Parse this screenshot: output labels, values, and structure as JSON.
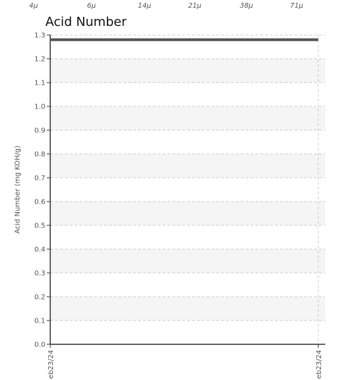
{
  "top_strip": {
    "labels": [
      "4μ",
      "6μ",
      "14μ",
      "21μ",
      "38μ",
      "71μ"
    ]
  },
  "chart_data": {
    "type": "line",
    "title": "Acid Number",
    "xlabel": "",
    "ylabel": "Acid Number (mg KOH/g)",
    "x": [
      "eb23/24",
      "eb23/24"
    ],
    "series": [
      {
        "values": [
          1.28,
          1.28
        ]
      }
    ],
    "ylim": [
      0,
      1.3
    ],
    "yticks": [
      "0.0",
      "0.1",
      "0.2",
      "0.3",
      "0.4",
      "0.5",
      "0.6",
      "0.7",
      "0.8",
      "0.9",
      "1.0",
      "1.1",
      "1.2",
      "1.3"
    ],
    "grid": true,
    "colors": {
      "line": "#555555",
      "band": "#f5f5f5",
      "grid": "#cccccc",
      "axis": "#333333"
    }
  }
}
